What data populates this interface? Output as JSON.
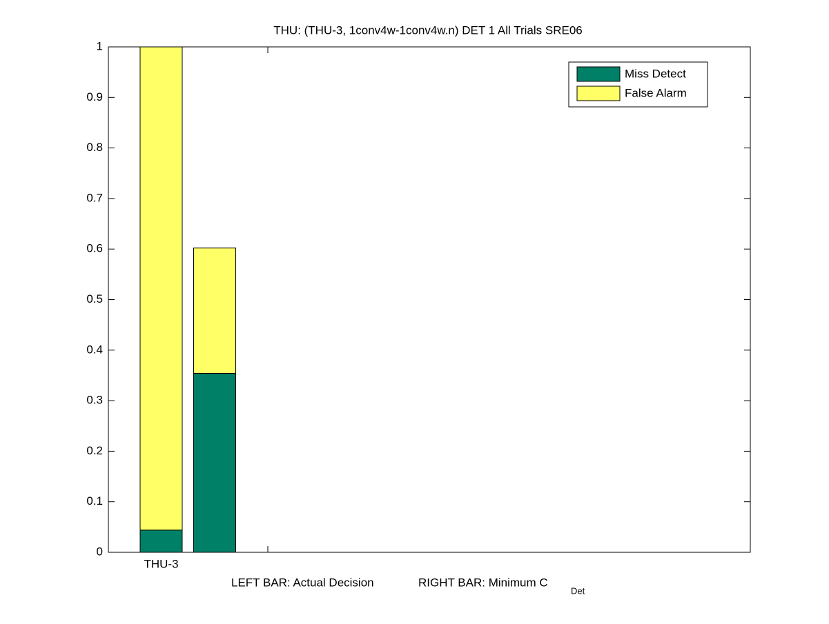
{
  "chart_data": {
    "type": "stacked-bar",
    "title": "THU: (THU-3, 1conv4w-1conv4w.n) DET 1 All Trials SRE06",
    "xlabel": {
      "left": "LEFT BAR: Actual Decision",
      "right": "RIGHT BAR: Minimum C",
      "subscript": "Det"
    },
    "categories": [
      "THU-3",
      null
    ],
    "series": [
      {
        "name": "Miss Detect",
        "color": "#008066",
        "values": [
          0.044,
          0.354
        ]
      },
      {
        "name": "False Alarm",
        "color": "#ffff66",
        "values": [
          0.956,
          0.248
        ]
      }
    ],
    "ylim": [
      0,
      1
    ],
    "yticks": [
      0,
      0.1,
      0.2,
      0.3,
      0.4,
      0.5,
      0.6,
      0.7,
      0.8,
      0.9,
      1
    ],
    "legend": "top-right"
  }
}
